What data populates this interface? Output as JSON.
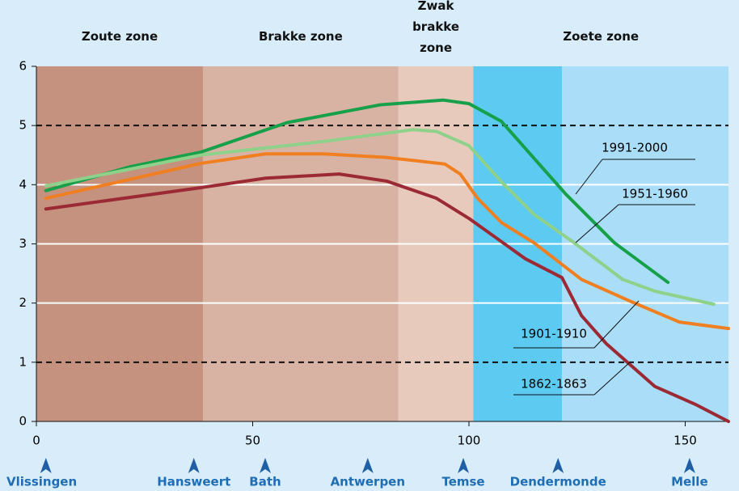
{
  "chart_data": {
    "type": "line",
    "xlim": [
      0,
      160
    ],
    "ylim": [
      0,
      6
    ],
    "xticks": [
      0,
      50,
      100,
      150
    ],
    "yticks": [
      0,
      1,
      2,
      3,
      4,
      5,
      6
    ],
    "grid_styles": [
      "none",
      "dashed",
      "solid",
      "solid",
      "solid",
      "dashed",
      "none"
    ],
    "bands": [
      {
        "x": [
          0,
          38.5
        ],
        "color": "#c5927f"
      },
      {
        "x": [
          38.5,
          83.7
        ],
        "color": "#d8b3a3"
      },
      {
        "x": [
          83.7,
          101
        ],
        "color": "#e8cabd"
      },
      {
        "x": [
          101,
          121.5
        ],
        "color": "#5ccaf1"
      },
      {
        "x": [
          121.5,
          160
        ],
        "color": "#a9ddf8"
      }
    ],
    "zone_labels": [
      {
        "label": "Zoute zone",
        "x": [
          0,
          38.5
        ]
      },
      {
        "label": "Brakke zone",
        "x": [
          38.5,
          83.7
        ]
      },
      {
        "label": "Zwak brakke zone",
        "x": [
          83.7,
          101
        ]
      },
      {
        "label": "Zoete zone",
        "x": [
          101,
          160
        ]
      }
    ],
    "locations": [
      {
        "label": "Vlissingen",
        "x": 2.2
      },
      {
        "label": "Hansweert",
        "x": 36.4
      },
      {
        "label": "Bath",
        "x": 52.9
      },
      {
        "label": "Antwerpen",
        "x": 76.6
      },
      {
        "label": "Temse",
        "x": 98.7
      },
      {
        "label": "Dendermonde",
        "x": 120.6
      },
      {
        "label": "Melle",
        "x": 151
      }
    ],
    "series": [
      {
        "name": "1991-2000",
        "color": "#16a04a",
        "x": [
          2.2,
          21.5,
          38,
          58,
          79.5,
          94,
          100,
          107.5,
          115,
          122.4,
          133.6,
          146
        ],
        "values": [
          3.9,
          4.3,
          4.55,
          5.05,
          5.35,
          5.43,
          5.37,
          5.07,
          4.45,
          3.84,
          3.02,
          2.35
        ]
      },
      {
        "name": "1951-1960",
        "color": "#8fd18a",
        "x": [
          2.2,
          38,
          66.4,
          87,
          92.5,
          100,
          107.5,
          115,
          124.3,
          135.5,
          143,
          156.6
        ],
        "values": [
          3.98,
          4.5,
          4.73,
          4.93,
          4.9,
          4.66,
          4.05,
          3.5,
          3.02,
          2.4,
          2.2,
          1.98
        ]
      },
      {
        "name": "1901-1910",
        "color": "#f07f22",
        "x": [
          2.2,
          38,
          53,
          66.4,
          81,
          94.4,
          98,
          102,
          107.5,
          115,
          126,
          137,
          148.6,
          160
        ],
        "values": [
          3.77,
          4.36,
          4.52,
          4.52,
          4.46,
          4.35,
          4.18,
          3.77,
          3.36,
          3.02,
          2.4,
          2.04,
          1.68,
          1.57
        ]
      },
      {
        "name": "1862-1863",
        "color": "#9b2a35",
        "x": [
          2.2,
          38,
          53,
          70,
          81,
          92.5,
          100,
          113,
          121.5,
          126,
          131.8,
          143,
          152.3,
          160
        ],
        "values": [
          3.59,
          3.95,
          4.11,
          4.18,
          4.06,
          3.77,
          3.43,
          2.75,
          2.43,
          1.79,
          1.31,
          0.59,
          0.29,
          0
        ]
      }
    ]
  }
}
